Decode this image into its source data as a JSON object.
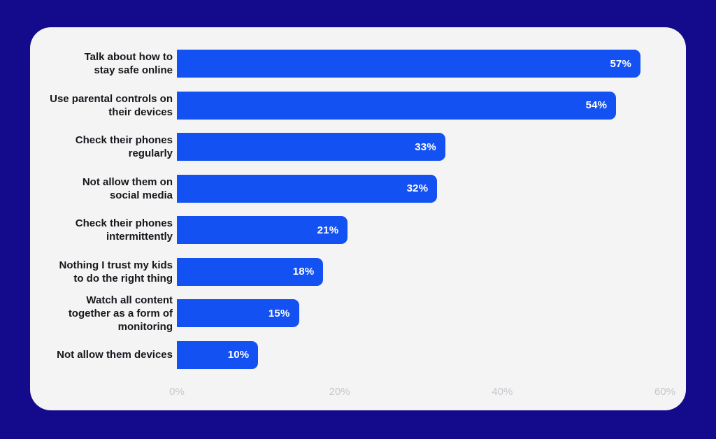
{
  "colors": {
    "page_background": "#140a8c",
    "card_background": "#f4f4f5",
    "bar": "#1451f2",
    "bar_value_text": "#ffffff",
    "label_text": "#17171c",
    "axis_text": "#c7c7cc"
  },
  "chart_data": {
    "type": "bar",
    "orientation": "horizontal",
    "title": "",
    "xlabel": "",
    "ylabel": "",
    "grid": false,
    "legend": false,
    "categories": [
      "Talk about how to\nstay safe online",
      "Use parental controls on\ntheir devices",
      "Check their phones\nregularly",
      "Not allow them on\nsocial media",
      "Check their phones\nintermittently",
      "Nothing I trust my kids\nto do the right thing",
      "Watch all content\ntogether as a form of\nmonitoring",
      "Not allow them devices"
    ],
    "values": [
      57,
      54,
      33,
      32,
      21,
      18,
      15,
      10
    ],
    "value_labels": [
      "57%",
      "54%",
      "33%",
      "32%",
      "21%",
      "18%",
      "15%",
      "10%"
    ],
    "x_axis": {
      "ticks": [
        "0%",
        "20%",
        "40%",
        "60%"
      ],
      "tick_values": [
        0,
        20,
        40,
        60
      ],
      "min": 0,
      "max": 60
    }
  }
}
